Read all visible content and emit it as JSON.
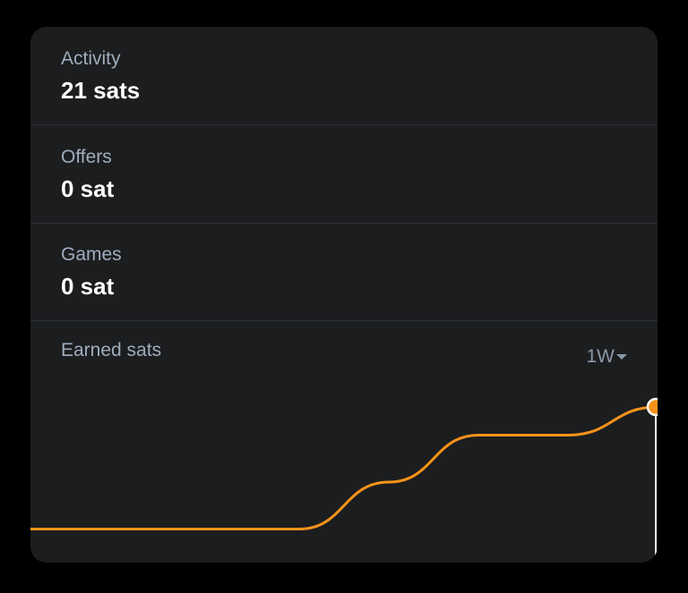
{
  "stats": [
    {
      "label": "Activity",
      "value": "21 sats"
    },
    {
      "label": "Offers",
      "value": "0 sat"
    },
    {
      "label": "Games",
      "value": "0 sat"
    }
  ],
  "chart": {
    "title": "Earned sats",
    "range_label": "1W",
    "line_color": "#f7931a",
    "background": "#1c1d1f"
  },
  "chart_data": {
    "type": "line",
    "title": "Earned sats",
    "xlabel": "",
    "ylabel": "",
    "grid": false,
    "legend": "none",
    "series": [
      {
        "values": [
          0,
          0,
          0,
          0,
          10,
          20,
          20,
          26
        ]
      }
    ],
    "x": [
      0,
      1,
      2,
      3,
      4,
      5,
      6,
      7
    ],
    "ylim": [
      -2,
      30
    ]
  }
}
